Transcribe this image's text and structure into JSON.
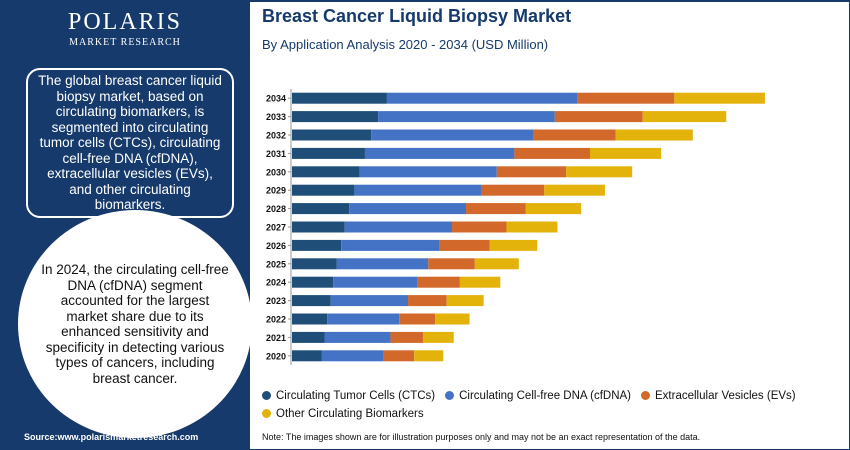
{
  "brand": {
    "name": "POLARIS",
    "tagline": "MARKET RESEARCH"
  },
  "sidebar": {
    "summary": "The global breast cancer liquid biopsy market, based on circulating biomarkers, is segmented into circulating tumor cells (CTCs), circulating cell-free DNA (cfDNA), extracellular vesicles (EVs), and other circulating biomarkers.",
    "highlight": "In 2024, the circulating cell-free DNA (cfDNA) segment accounted for the largest market share due to its enhanced sensitivity and specificity in detecting various types of cancers, including breast cancer.",
    "source": "Source:www.polarismarketresearch.com"
  },
  "note": "Note: The images shown are for illustration purposes only and may not be an exact representation of the data.",
  "colors": {
    "ctc": "#1f4e79",
    "cfdna": "#4472c4",
    "ev": "#d2692a",
    "other": "#e3b20b",
    "panel": "#163a6b"
  },
  "chart_data": {
    "type": "bar",
    "orientation": "horizontal",
    "stacked": true,
    "title": "Breast Cancer Liquid Biopsy Market",
    "subtitle": "By Application Analysis 2020 - 2034 (USD Million)",
    "categories": [
      "2034",
      "2033",
      "2032",
      "2031",
      "2030",
      "2029",
      "2028",
      "2027",
      "2026",
      "2025",
      "2024",
      "2023",
      "2022",
      "2021",
      "2020"
    ],
    "series": [
      {
        "name": "Circulating Tumor Cells (CTCs)",
        "color": "#1f4e79",
        "values": [
          108,
          98,
          90,
          83,
          77,
          71,
          65,
          60,
          56,
          51,
          47,
          44,
          40,
          37,
          34
        ]
      },
      {
        "name": "Circulating Cell-free DNA (cfDNA)",
        "color": "#4472c4",
        "values": [
          217,
          201,
          185,
          170,
          156,
          144,
          133,
          122,
          112,
          104,
          96,
          88,
          82,
          75,
          70
        ]
      },
      {
        "name": "Extracellular Vesicles (EVs)",
        "color": "#d2692a",
        "values": [
          110,
          100,
          93,
          86,
          79,
          72,
          68,
          62,
          57,
          53,
          48,
          44,
          41,
          37,
          35
        ]
      },
      {
        "name": "Other Circulating Biomarkers",
        "color": "#e3b20b",
        "values": [
          103,
          95,
          88,
          81,
          75,
          69,
          63,
          58,
          54,
          50,
          46,
          42,
          39,
          35,
          33
        ]
      }
    ],
    "grid": false,
    "legend_position": "bottom"
  }
}
